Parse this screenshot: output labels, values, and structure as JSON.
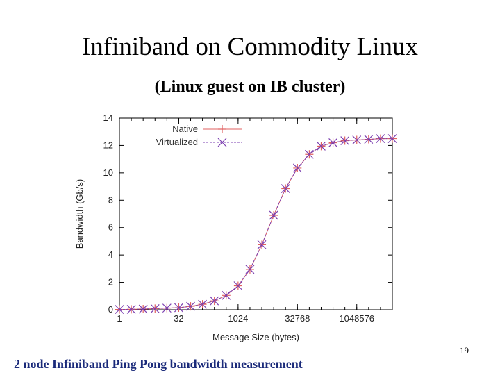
{
  "slide": {
    "title": "Infiniband on Commodity Linux",
    "subtitle": "(Linux guest on IB cluster)",
    "caption": "2 node Infiniband Ping Pong bandwidth measurement",
    "page_number": "19"
  },
  "colors": {
    "native": "#e06060",
    "virtualized": "#7b3fb0",
    "axis": "#000000",
    "caption": "#1a2a7a"
  },
  "chart_data": {
    "type": "line",
    "title": "",
    "xlabel": "Message Size (bytes)",
    "ylabel": "Bandwidth (Gb/s)",
    "x_scale": "log2",
    "x_ticks": [
      1,
      32,
      1024,
      32768,
      1048576
    ],
    "x_tick_labels": [
      "1",
      "32",
      "1024",
      "32768",
      "1048576"
    ],
    "y_ticks": [
      0,
      2,
      4,
      6,
      8,
      10,
      12,
      14
    ],
    "y_tick_labels": [
      "0",
      "2",
      "4",
      "6",
      "8",
      "10",
      "12",
      "14"
    ],
    "xlim": [
      1,
      8388608
    ],
    "ylim": [
      0,
      14
    ],
    "legend_position": "top-left",
    "x": [
      1,
      2,
      4,
      8,
      16,
      32,
      64,
      128,
      256,
      512,
      1024,
      2048,
      4096,
      8192,
      16384,
      32768,
      65536,
      131072,
      262144,
      524288,
      1048576,
      2097152,
      4194304,
      8388608
    ],
    "series": [
      {
        "name": "Native",
        "marker": "plus",
        "line": "solid",
        "values": [
          0.02,
          0.03,
          0.05,
          0.08,
          0.12,
          0.15,
          0.25,
          0.4,
          0.65,
          1.05,
          1.75,
          2.95,
          4.75,
          6.9,
          8.85,
          10.35,
          11.35,
          11.95,
          12.2,
          12.35,
          12.4,
          12.45,
          12.5,
          12.5
        ]
      },
      {
        "name": "Virtualized",
        "marker": "x",
        "line": "dashed",
        "values": [
          0.02,
          0.03,
          0.05,
          0.08,
          0.12,
          0.15,
          0.25,
          0.4,
          0.65,
          1.05,
          1.75,
          2.95,
          4.75,
          6.9,
          8.85,
          10.35,
          11.35,
          11.95,
          12.2,
          12.35,
          12.4,
          12.45,
          12.5,
          12.5
        ]
      }
    ]
  }
}
